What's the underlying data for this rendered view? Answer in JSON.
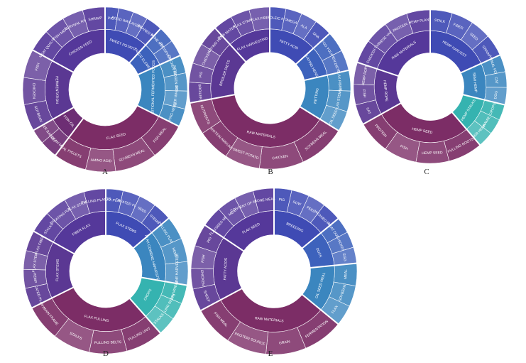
{
  "chart_data": [
    {
      "type": "sunburst",
      "panel_label": "A",
      "start_angle": 90,
      "inner": [
        {
          "name": "SWEET POTATO",
          "value": 40,
          "color": "#3f4bb4",
          "outer": [
            {
              "name": "PIG",
              "value": 9
            },
            {
              "name": "FOOD WASTE",
              "value": 10
            },
            {
              "name": "LAYERS",
              "value": 10
            },
            {
              "name": "WEANED PIGS",
              "value": 11
            }
          ]
        },
        {
          "name": "TRACE ELEMENTS",
          "value": 22,
          "color": "#3d62bc",
          "outer": [
            {
              "name": "BONE MEAL",
              "value": 11
            },
            {
              "name": "PHOSPHORUS",
              "value": 11
            }
          ]
        },
        {
          "name": "TRADITIONAL FERMENTED FOODS",
          "value": 48,
          "color": "#3b86bf",
          "outer": [
            {
              "name": "CHICKEN MEAT",
              "value": 12
            },
            {
              "name": "NITROGEN SOURCE",
              "value": 12
            },
            {
              "name": "WINTER WHEAT",
              "value": 12
            },
            {
              "name": "LAYING HENS",
              "value": 12
            }
          ]
        },
        {
          "name": "FLAX SEED",
          "value": 95,
          "color": "#7c2d66",
          "outer": [
            {
              "name": "FISH MEAL",
              "value": 25
            },
            {
              "name": "SOYBEAN MEAL",
              "value": 28
            },
            {
              "name": "AMINO ACID",
              "value": 20
            },
            {
              "name": "PIGLETS",
              "value": 22
            }
          ]
        },
        {
          "name": "FISH OIL",
          "value": 22,
          "color": "#6d2e74",
          "outer": [
            {
              "name": "SOYBEAN MEAL",
              "value": 12
            },
            {
              "name": "WINTER BARLEY",
              "value": 10
            }
          ]
        },
        {
          "name": "FERMENTATION",
          "value": 55,
          "color": "#5b3893",
          "outer": [
            {
              "name": "SOYBEAN",
              "value": 18
            },
            {
              "name": "CHICKEN",
              "value": 18
            },
            {
              "name": "FISH",
              "value": 19
            }
          ]
        },
        {
          "name": "CHICKEN FEED",
          "value": 58,
          "color": "#55389a",
          "outer": [
            {
              "name": "MEAT QUALITY",
              "value": 15
            },
            {
              "name": "FISH MEAL",
              "value": 14
            },
            {
              "name": "SURVIVAL RATE",
              "value": 14
            },
            {
              "name": "SHRIMP",
              "value": 15
            }
          ]
        }
      ]
    },
    {
      "type": "sunburst",
      "panel_label": "B",
      "start_angle": 90,
      "inner": [
        {
          "name": "FATTY ACID",
          "value": 45,
          "color": "#3f4bb4",
          "outer": [
            {
              "name": "LINOLEIC ACID",
              "value": 11
            },
            {
              "name": "OMEGA",
              "value": 11
            },
            {
              "name": "ALA",
              "value": 11
            },
            {
              "name": "DHA",
              "value": 12
            }
          ]
        },
        {
          "name": "LAYING HENS",
          "value": 28,
          "color": "#3d62bc",
          "outer": [
            {
              "name": "EGG YOLK",
              "value": 14
            },
            {
              "name": "HEN DIETS",
              "value": 14
            }
          ]
        },
        {
          "name": "RETTING",
          "value": 42,
          "color": "#3b86bf",
          "outer": [
            {
              "name": "FLAX FIBRES",
              "value": 14
            },
            {
              "name": "FLAX STEMS",
              "value": 14
            },
            {
              "name": "OIL SEED",
              "value": 14
            }
          ]
        },
        {
          "name": "RAW MATERIALS",
          "value": 130,
          "color": "#7c2d66",
          "outer": [
            {
              "name": "SOYBEAN MEAL",
              "value": 32
            },
            {
              "name": "CHICKEN",
              "value": 30
            },
            {
              "name": "SWEET POTATO",
              "value": 24
            },
            {
              "name": "PROTEIN AMOUNT",
              "value": 22
            },
            {
              "name": "NUTRIENTS",
              "value": 22
            }
          ]
        },
        {
          "name": "BROILER DIETS",
          "value": 55,
          "color": "#5b3893",
          "outer": [
            {
              "name": "BROILER",
              "value": 14
            },
            {
              "name": "PIG",
              "value": 13
            },
            {
              "name": "CHICKEN",
              "value": 14
            },
            {
              "name": "LAYING HENS",
              "value": 14
            }
          ]
        },
        {
          "name": "FLAX HARVESTING",
          "value": 40,
          "color": "#55389a",
          "outer": [
            {
              "name": "RAW MATERIAL",
              "value": 13
            },
            {
              "name": "FLAX STRAW",
              "value": 13
            },
            {
              "name": "FLAX FIBER",
              "value": 14
            }
          ]
        }
      ]
    },
    {
      "type": "sunburst",
      "panel_label": "C",
      "start_angle": 90,
      "inner": [
        {
          "name": "HEMP HARVEST",
          "value": 55,
          "color": "#3f4bb4",
          "outer": [
            {
              "name": "STALK",
              "value": 14
            },
            {
              "name": "FIBER",
              "value": 14
            },
            {
              "name": "SEED",
              "value": 13
            },
            {
              "name": "GRAIN",
              "value": 14
            }
          ]
        },
        {
          "name": "SEMI HEMP",
          "value": 32,
          "color": "#3b86bf",
          "outer": [
            {
              "name": "ANIMAL FEED",
              "value": 11
            },
            {
              "name": "CAT",
              "value": 10
            },
            {
              "name": "DOG",
              "value": 11
            }
          ]
        },
        {
          "name": "HEMP STALKS",
          "value": 30,
          "color": "#35b3b0",
          "outer": [
            {
              "name": "CROPS",
              "value": 10
            },
            {
              "name": "RAMIE",
              "value": 10
            },
            {
              "name": "FIBER HEMP",
              "value": 10
            }
          ]
        },
        {
          "name": "HEMP SEED",
          "value": 85,
          "color": "#7c2d66",
          "outer": [
            {
              "name": "PULLING ROOTS",
              "value": 22
            },
            {
              "name": "HEMP SEED",
              "value": 21
            },
            {
              "name": "FISH",
              "value": 21
            },
            {
              "name": "PROTEIN",
              "value": 21
            }
          ]
        },
        {
          "name": "HEMP ROPE",
          "value": 40,
          "color": "#5b3893",
          "outer": [
            {
              "name": "CAT",
              "value": 13
            },
            {
              "name": "FISH",
              "value": 13
            },
            {
              "name": "HEMP ROPE",
              "value": 14
            }
          ]
        },
        {
          "name": "RAW MATERIALS",
          "value": 60,
          "color": "#55389a",
          "outer": [
            {
              "name": "CHICKEN",
              "value": 15
            },
            {
              "name": "CHINESE YAM",
              "value": 15
            },
            {
              "name": "PROTEIN",
              "value": 15
            },
            {
              "name": "HEMP PLANT",
              "value": 15
            }
          ]
        }
      ]
    },
    {
      "type": "sunburst",
      "panel_label": "D",
      "start_angle": 90,
      "inner": [
        {
          "name": "FLAX STEMS",
          "value": 45,
          "color": "#3f4bb4",
          "outer": [
            {
              "name": "FLAX PLANT",
              "value": 11
            },
            {
              "name": "TREATED FLAX",
              "value": 11
            },
            {
              "name": "SEED",
              "value": 11
            },
            {
              "name": "STEMS",
              "value": 12
            }
          ]
        },
        {
          "name": "FLAX COMBINE HARVESTER",
          "value": 45,
          "color": "#3b86bf",
          "outer": [
            {
              "name": "PULLING PLANT",
              "value": 15
            },
            {
              "name": "HEMP",
              "value": 15
            },
            {
              "name": "COMBINE HARVESTER",
              "value": 15
            }
          ]
        },
        {
          "name": "CROPS",
          "value": 35,
          "color": "#35b3b0",
          "outer": [
            {
              "name": "MAIN WHEEL",
              "value": 12
            },
            {
              "name": "PULLING BELTS",
              "value": 11
            },
            {
              "name": "STALKS",
              "value": 12
            }
          ]
        },
        {
          "name": "FLAX PULLING",
          "value": 95,
          "color": "#7c2d66",
          "outer": [
            {
              "name": "PULLING UNIT",
              "value": 24
            },
            {
              "name": "PULLING BELTS",
              "value": 24
            },
            {
              "name": "STALKS",
              "value": 24
            },
            {
              "name": "MAIN FRAME",
              "value": 23
            }
          ]
        },
        {
          "name": "FLAX STEMS",
          "value": 50,
          "color": "#5b3893",
          "outer": [
            {
              "name": "TREATED PLANT",
              "value": 13
            },
            {
              "name": "HEMP",
              "value": 12
            },
            {
              "name": "FLAX STEMS",
              "value": 12
            },
            {
              "name": "FLAX FIBER",
              "value": 13
            }
          ]
        },
        {
          "name": "FIBER FLAX",
          "value": 55,
          "color": "#55389a",
          "outer": [
            {
              "name": "STALKS",
              "value": 14
            },
            {
              "name": "TREATING PLANT",
              "value": 14
            },
            {
              "name": "FLAX STRAW",
              "value": 13
            },
            {
              "name": "PULLING PLANTS",
              "value": 14
            }
          ]
        }
      ]
    },
    {
      "type": "sunburst",
      "panel_label": "E",
      "start_angle": 90,
      "inner": [
        {
          "name": "BREEDING",
          "value": 45,
          "color": "#3f4bb4",
          "outer": [
            {
              "name": "PIG",
              "value": 11
            },
            {
              "name": "SOW",
              "value": 11
            },
            {
              "name": "FEED",
              "value": 11
            },
            {
              "name": "WEANED PIGS",
              "value": 12
            }
          ]
        },
        {
          "name": "DUCK",
          "value": 30,
          "color": "#3d62bc",
          "outer": [
            {
              "name": "MEAT DUCK",
              "value": 10
            },
            {
              "name": "CHICKEN",
              "value": 10
            },
            {
              "name": "EGG",
              "value": 10
            }
          ]
        },
        {
          "name": "OIL SEED MEAL",
          "value": 40,
          "color": "#3b86bf",
          "outer": [
            {
              "name": "MEAL",
              "value": 14
            },
            {
              "name": "SOYBEAN",
              "value": 13
            },
            {
              "name": "FLAX",
              "value": 13
            }
          ]
        },
        {
          "name": "RAW MATERIALS",
          "value": 100,
          "color": "#7c2d66",
          "outer": [
            {
              "name": "FERMENTATION",
              "value": 25
            },
            {
              "name": "GRAIN",
              "value": 25
            },
            {
              "name": "PROTEIN SOURCE",
              "value": 25
            },
            {
              "name": "FISH MEAL",
              "value": 25
            }
          ]
        },
        {
          "name": "FATTY ACIDS",
          "value": 55,
          "color": "#5b3893",
          "outer": [
            {
              "name": "SHEEP",
              "value": 14
            },
            {
              "name": "CHICKEN",
              "value": 13
            },
            {
              "name": "FISH",
              "value": 14
            },
            {
              "name": "PIG",
              "value": 14
            }
          ]
        },
        {
          "name": "FLAX SEED",
          "value": 50,
          "color": "#55389a",
          "outer": [
            {
              "name": "FLAXSEED MEAL",
              "value": 13
            },
            {
              "name": "MEAT",
              "value": 12
            },
            {
              "name": "CONTENT OF ANIMAL",
              "value": 12
            },
            {
              "name": "BONE MEAL",
              "value": 13
            }
          ]
        }
      ]
    }
  ]
}
